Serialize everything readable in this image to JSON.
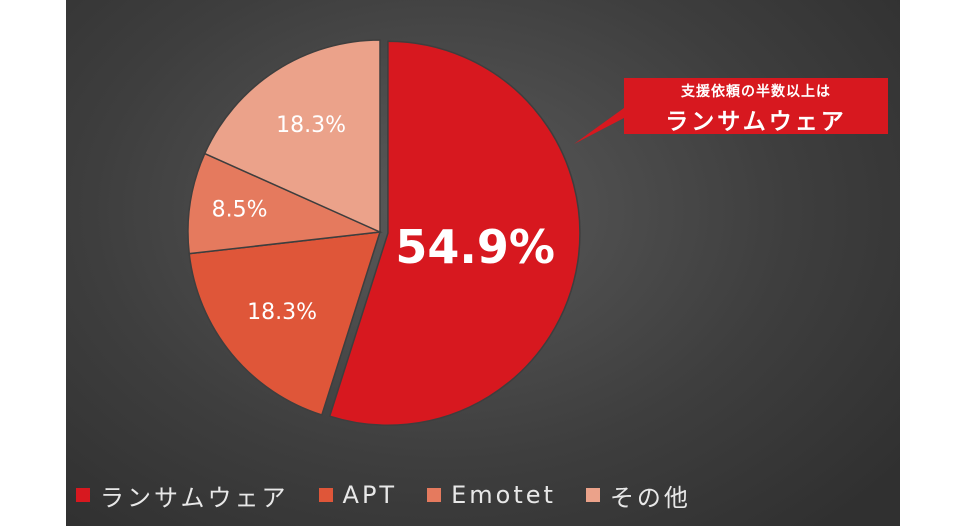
{
  "chart_data": {
    "type": "pie",
    "categories": [
      "ランサムウェア",
      "APT",
      "Emotet",
      "その他"
    ],
    "values": [
      54.9,
      18.3,
      8.5,
      18.3
    ],
    "labels": [
      "54.9%",
      "18.3%",
      "8.5%",
      "18.3%"
    ],
    "colors": [
      "#d7181f",
      "#df5639",
      "#e57a5e",
      "#eba28a"
    ],
    "legend_position": "bottom-left",
    "exploded": [
      true,
      false,
      false,
      false
    ],
    "start": "top, clockwise"
  },
  "callout": {
    "line1": "支援依頼の半数以上は",
    "line2": "ランサムウェア",
    "color": "#d7181f"
  },
  "colors": {
    "background": "#3e3e3e",
    "text": "#ffffff"
  }
}
